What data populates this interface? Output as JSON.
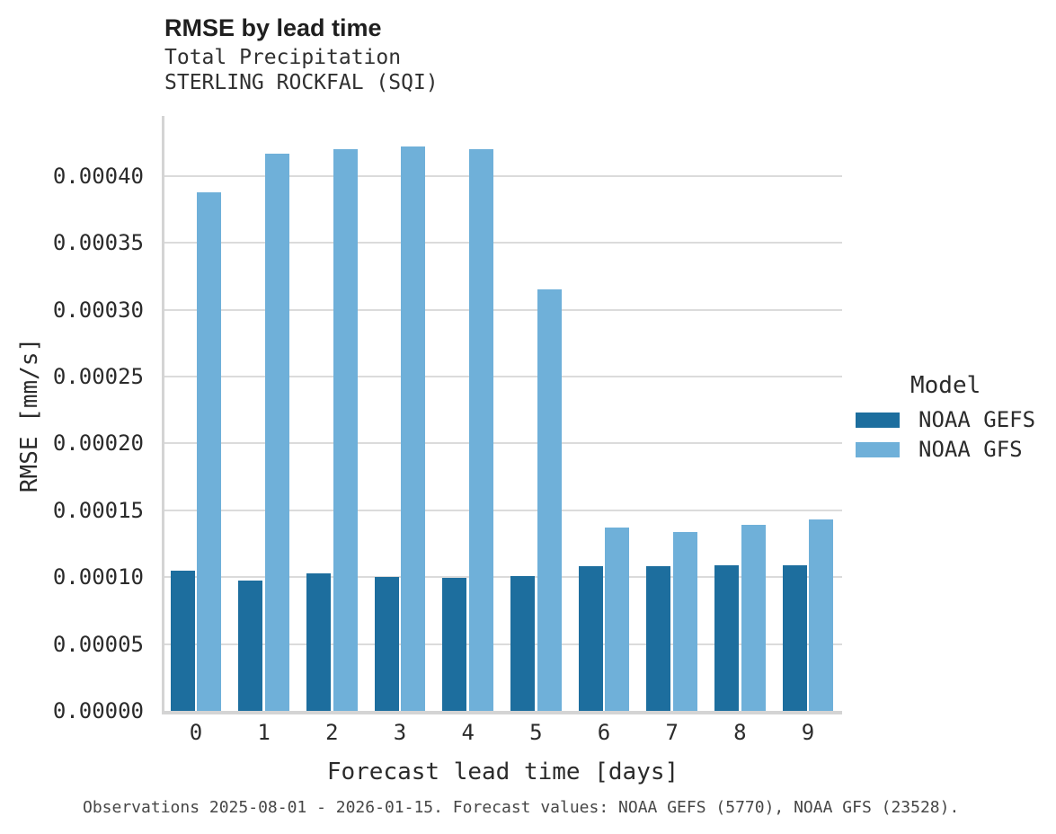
{
  "chart_data": {
    "type": "bar",
    "title": "RMSE by lead time",
    "subtitle": "Total Precipitation",
    "station": "STERLING ROCKFAL (SQI)",
    "xlabel": "Forecast lead time [days]",
    "ylabel": "RMSE [mm/s]",
    "categories": [
      "0",
      "1",
      "2",
      "3",
      "4",
      "5",
      "6",
      "7",
      "8",
      "9"
    ],
    "series": [
      {
        "name": "NOAA GEFS",
        "color": "#1d6e9e",
        "values": [
          0.000105,
          9.73e-05,
          0.000103,
          0.0001,
          9.97e-05,
          0.000101,
          0.000108,
          0.000108,
          0.000109,
          0.000109
        ]
      },
      {
        "name": "NOAA GFS",
        "color": "#6fb0d9",
        "values": [
          0.000388,
          0.000417,
          0.00042,
          0.000422,
          0.00042,
          0.000315,
          0.000137,
          0.000134,
          0.000139,
          0.000143
        ]
      }
    ],
    "ylim": [
      0,
      0.000445
    ],
    "yticks": [
      0,
      5e-05,
      0.0001,
      0.00015,
      0.0002,
      0.00025,
      0.0003,
      0.00035,
      0.0004
    ],
    "ytick_labels": [
      "0.00000",
      "0.00005",
      "0.00010",
      "0.00015",
      "0.00020",
      "0.00025",
      "0.00030",
      "0.00035",
      "0.00040"
    ],
    "grid": true,
    "legend": {
      "title": "Model",
      "position": "right"
    }
  },
  "colors": {
    "gridline": "#dbdbdb",
    "spine": "#d4d4d4",
    "background": "#ffffff"
  },
  "footer": {
    "caption": "Observations 2025-08-01 - 2026-01-15. Forecast values: NOAA GEFS (5770), NOAA GFS (23528)."
  }
}
